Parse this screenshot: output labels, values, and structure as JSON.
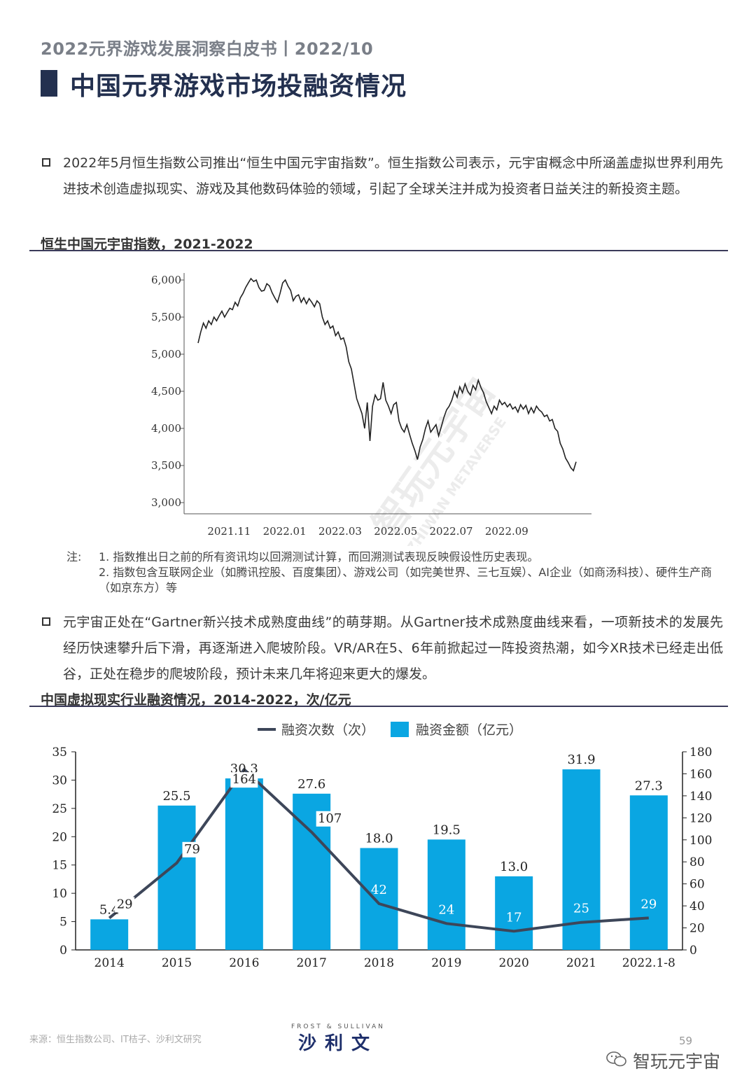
{
  "header": {
    "text": "2022元界游戏发展洞察白皮书丨2022/10"
  },
  "title": "中国元界游戏市场投融资情况",
  "paragraphs": [
    "2022年5月恒生指数公司推出“恒生中国元宇宙指数”。恒生指数公司表示，元宇宙概念中所涵盖虚拟世界利用先进技术创造虚拟现实、游戏及其他数码体验的领域，引起了全球关注并成为投资者日益关注的新投资主题。",
    "元宇宙正处在“Gartner新兴技术成熟度曲线”的萌芽期。从Gartner技术成熟度曲线来看，一项新技术的发展先经历快速攀升后下滑，再逐渐进入爬坡阶段。VR/AR在5、6年前掀起过一阵投资热潮，如今XR技术已经走出低谷，正处在稳步的爬坡阶段，预计未来几年将迎来更大的爆发。"
  ],
  "section1_title": "恒生中国元宇宙指数，2021-2022",
  "section2_title": "中国虚拟现实行业融资情况，2014-2022，次/亿元",
  "notes": {
    "label": "注:",
    "lines": [
      "1. 指数推出日之前的所有资讯均以回溯测试计算，而回溯测试表现反映假设性历史表现。",
      "2. 指数包含互联网企业（如腾讯控股、百度集团）、游戏公司（如完美世界、三七互娱）、AI企业（如商汤科技）、硬件生产商（如京东方）等"
    ]
  },
  "chart_data": [
    {
      "type": "line",
      "title": "恒生中国元宇宙指数，2021-2022",
      "ylim": [
        3000,
        6000
      ],
      "yticks": [
        "6,000",
        "5,500",
        "5,000",
        "4,500",
        "4,000",
        "3,500",
        "3,000"
      ],
      "ytick_values": [
        6000,
        5500,
        5000,
        4500,
        4000,
        3500,
        3000
      ],
      "xticks": [
        "2021.11",
        "2022.01",
        "2022.03",
        "2022.05",
        "2022.07",
        "2022.09"
      ],
      "xtick_index": [
        3,
        24,
        45,
        66,
        87,
        108
      ],
      "color": "#222222",
      "values": [
        5150,
        5300,
        5420,
        5350,
        5450,
        5400,
        5500,
        5450,
        5520,
        5580,
        5500,
        5560,
        5620,
        5600,
        5700,
        5650,
        5760,
        5820,
        5900,
        5960,
        6020,
        5980,
        6000,
        5900,
        5850,
        5860,
        5950,
        5920,
        5830,
        5760,
        5700,
        5820,
        5960,
        6000,
        5920,
        5860,
        5720,
        5780,
        5800,
        5700,
        5760,
        5680,
        5750,
        5700,
        5640,
        5720,
        5680,
        5500,
        5400,
        5450,
        5350,
        5380,
        5250,
        5300,
        5200,
        5220,
        5100,
        4900,
        4800,
        4600,
        4400,
        4300,
        4200,
        4000,
        4350,
        3830,
        4300,
        4450,
        4380,
        4400,
        4620,
        4380,
        4300,
        4200,
        4320,
        4350,
        4100,
        4000,
        3950,
        4050,
        3920,
        3800,
        3700,
        3580,
        3750,
        3850,
        4000,
        4100,
        3950,
        4000,
        4050,
        3900,
        4020,
        4150,
        4250,
        4300,
        4380,
        4500,
        4420,
        4560,
        4480,
        4600,
        4500,
        4450,
        4580,
        4520,
        4650,
        4550,
        4480,
        4360,
        4280,
        4200,
        4300,
        4250,
        4380,
        4320,
        4350,
        4290,
        4330,
        4260,
        4290,
        4220,
        4320,
        4260,
        4310,
        4200,
        4280,
        4210,
        4300,
        4250,
        4220,
        4160,
        4180,
        4100,
        4120,
        4000,
        3960,
        3800,
        3720,
        3600,
        3540,
        3470,
        3430,
        3550
      ]
    },
    {
      "type": "bar",
      "title": "中国虚拟现实行业融资情况，2014-2022，次/亿元",
      "categories": [
        "2014",
        "2015",
        "2016",
        "2017",
        "2018",
        "2019",
        "2020",
        "2021",
        "2022.1-8"
      ],
      "legend": {
        "line_label": "融资次数（次）",
        "bar_label": "融资金额（亿元）",
        "placement": "top"
      },
      "series": [
        {
          "name": "融资金额（亿元）",
          "type": "bar",
          "axis": "left",
          "color": "#0aa6e2",
          "values": [
            5.4,
            25.5,
            30.3,
            27.6,
            18.0,
            19.5,
            13.0,
            31.9,
            27.3
          ],
          "labels": [
            "5.4",
            "25.5",
            "30.3",
            "27.6",
            "18.0",
            "19.5",
            "13.0",
            "31.9",
            "27.3"
          ]
        },
        {
          "name": "融资次数（次）",
          "type": "line",
          "axis": "right",
          "color": "#3d4659",
          "values": [
            29,
            79,
            164,
            107,
            42,
            24,
            17,
            25,
            29
          ],
          "labels": [
            "29",
            "79",
            "164",
            "107",
            "42",
            "24",
            "17",
            "25",
            "29"
          ]
        }
      ],
      "left_ylim": [
        0,
        35
      ],
      "left_ticks": [
        "35",
        "30",
        "25",
        "20",
        "15",
        "10",
        "5",
        "0"
      ],
      "right_ylim": [
        0,
        180
      ],
      "right_ticks": [
        "180",
        "160",
        "140",
        "120",
        "100",
        "80",
        "60",
        "40",
        "20",
        "0"
      ]
    }
  ],
  "watermark": {
    "cn": "智玩元宇宙",
    "en": "ZHIWAN METAVERSE"
  },
  "footer": {
    "source": "来源：恒生指数公司、IT桔子、沙利文研究",
    "logo_en": "FROST & SULLIVAN",
    "logo_cn": "沙利文",
    "page": "59",
    "wechat_name": "智玩元宇宙"
  }
}
